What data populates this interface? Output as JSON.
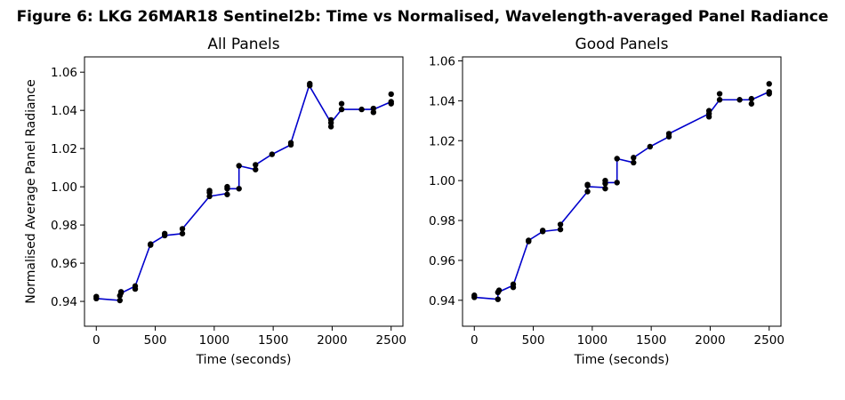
{
  "figure": {
    "title": "Figure 6: LKG 26MAR18  Sentinel2b: Time vs Normalised, Wavelength-averaged Panel Radiance"
  },
  "chart_data": [
    {
      "type": "line",
      "title": "All Panels",
      "xlabel": "Time (seconds)",
      "ylabel": "Normalised Average Panel Radiance",
      "xlim": [
        -100,
        2600
      ],
      "ylim": [
        0.927,
        1.068
      ],
      "xticks": [
        0,
        500,
        1000,
        1500,
        2000,
        2500
      ],
      "yticks": [
        0.94,
        0.96,
        0.98,
        1.0,
        1.02,
        1.04,
        1.06
      ],
      "yticklabels": [
        "0.94",
        "0.96",
        "0.98",
        "1.00",
        "1.02",
        "1.04",
        "1.06"
      ],
      "grid": false,
      "line_color": "#0000cc",
      "marker_color": "#000000",
      "series": [
        {
          "points": [
            [
              0,
              0.9415
            ],
            [
              0,
              0.9425
            ],
            [
              200,
              0.9405
            ],
            [
              200,
              0.943
            ],
            [
              210,
              0.9445
            ],
            [
              210,
              0.945
            ],
            [
              330,
              0.9465
            ],
            [
              330,
              0.948
            ],
            [
              460,
              0.9695
            ],
            [
              460,
              0.97
            ],
            [
              580,
              0.9745
            ],
            [
              580,
              0.9755
            ],
            [
              730,
              0.9755
            ],
            [
              730,
              0.978
            ],
            [
              960,
              0.995
            ],
            [
              960,
              0.997
            ],
            [
              960,
              0.998
            ],
            [
              1110,
              0.996
            ],
            [
              1110,
              0.999
            ],
            [
              1110,
              1.0
            ],
            [
              1210,
              0.999
            ],
            [
              1210,
              1.011
            ],
            [
              1350,
              1.009
            ],
            [
              1350,
              1.0115
            ],
            [
              1490,
              1.017
            ],
            [
              1650,
              1.022
            ],
            [
              1650,
              1.023
            ],
            [
              1810,
              1.053
            ],
            [
              1810,
              1.054
            ],
            [
              1990,
              1.0315
            ],
            [
              1990,
              1.0335
            ],
            [
              1990,
              1.035
            ],
            [
              2080,
              1.0405
            ],
            [
              2080,
              1.0435
            ],
            [
              2250,
              1.0405
            ],
            [
              2350,
              1.039
            ],
            [
              2350,
              1.041
            ],
            [
              2500,
              1.0435
            ],
            [
              2500,
              1.0445
            ],
            [
              2500,
              1.0485
            ]
          ],
          "line": [
            [
              0,
              0.9415
            ],
            [
              200,
              0.9405
            ],
            [
              200,
              0.944
            ],
            [
              330,
              0.948
            ],
            [
              460,
              0.97
            ],
            [
              580,
              0.9745
            ],
            [
              730,
              0.9755
            ],
            [
              730,
              0.978
            ],
            [
              960,
              0.995
            ],
            [
              1110,
              0.9965
            ],
            [
              1110,
              0.999
            ],
            [
              1210,
              0.999
            ],
            [
              1210,
              1.011
            ],
            [
              1350,
              1.009
            ],
            [
              1350,
              1.0115
            ],
            [
              1490,
              1.017
            ],
            [
              1650,
              1.022
            ],
            [
              1650,
              1.023
            ],
            [
              1810,
              1.054
            ],
            [
              1810,
              1.0525
            ],
            [
              1990,
              1.0335
            ],
            [
              2080,
              1.0405
            ],
            [
              2250,
              1.0405
            ],
            [
              2350,
              1.0405
            ],
            [
              2500,
              1.0445
            ]
          ]
        }
      ]
    },
    {
      "type": "line",
      "title": "Good Panels",
      "xlabel": "Time (seconds)",
      "ylabel": "",
      "xlim": [
        -100,
        2600
      ],
      "ylim": [
        0.927,
        1.062
      ],
      "xticks": [
        0,
        500,
        1000,
        1500,
        2000,
        2500
      ],
      "yticks": [
        0.94,
        0.96,
        0.98,
        1.0,
        1.02,
        1.04,
        1.06
      ],
      "yticklabels": [
        "0.94",
        "0.96",
        "0.98",
        "1.00",
        "1.02",
        "1.04",
        "1.06"
      ],
      "grid": false,
      "line_color": "#0000cc",
      "marker_color": "#000000",
      "series": [
        {
          "points": [
            [
              0,
              0.9415
            ],
            [
              0,
              0.9425
            ],
            [
              200,
              0.9405
            ],
            [
              200,
              0.944
            ],
            [
              210,
              0.945
            ],
            [
              330,
              0.9465
            ],
            [
              330,
              0.948
            ],
            [
              460,
              0.9695
            ],
            [
              460,
              0.97
            ],
            [
              580,
              0.9745
            ],
            [
              580,
              0.975
            ],
            [
              730,
              0.9755
            ],
            [
              730,
              0.978
            ],
            [
              960,
              0.9945
            ],
            [
              960,
              0.9975
            ],
            [
              960,
              0.998
            ],
            [
              1110,
              0.996
            ],
            [
              1110,
              0.9985
            ],
            [
              1110,
              1.0
            ],
            [
              1210,
              0.999
            ],
            [
              1210,
              1.011
            ],
            [
              1350,
              1.009
            ],
            [
              1350,
              1.0115
            ],
            [
              1490,
              1.017
            ],
            [
              1650,
              1.022
            ],
            [
              1650,
              1.0235
            ],
            [
              1990,
              1.032
            ],
            [
              1990,
              1.0335
            ],
            [
              1990,
              1.035
            ],
            [
              2080,
              1.0405
            ],
            [
              2080,
              1.0435
            ],
            [
              2250,
              1.0405
            ],
            [
              2350,
              1.0385
            ],
            [
              2350,
              1.041
            ],
            [
              2500,
              1.0435
            ],
            [
              2500,
              1.0445
            ],
            [
              2500,
              1.0485
            ]
          ],
          "line": [
            [
              0,
              0.9415
            ],
            [
              200,
              0.9405
            ],
            [
              200,
              0.944
            ],
            [
              330,
              0.9475
            ],
            [
              460,
              0.97
            ],
            [
              580,
              0.9745
            ],
            [
              730,
              0.9755
            ],
            [
              730,
              0.978
            ],
            [
              960,
              0.9945
            ],
            [
              960,
              0.997
            ],
            [
              1110,
              0.9965
            ],
            [
              1110,
              0.999
            ],
            [
              1210,
              0.999
            ],
            [
              1210,
              1.011
            ],
            [
              1350,
              1.009
            ],
            [
              1350,
              1.0115
            ],
            [
              1490,
              1.017
            ],
            [
              1650,
              1.022
            ],
            [
              1650,
              1.0235
            ],
            [
              1990,
              1.0335
            ],
            [
              2080,
              1.0405
            ],
            [
              2250,
              1.0405
            ],
            [
              2350,
              1.0405
            ],
            [
              2500,
              1.0445
            ]
          ]
        }
      ]
    }
  ]
}
